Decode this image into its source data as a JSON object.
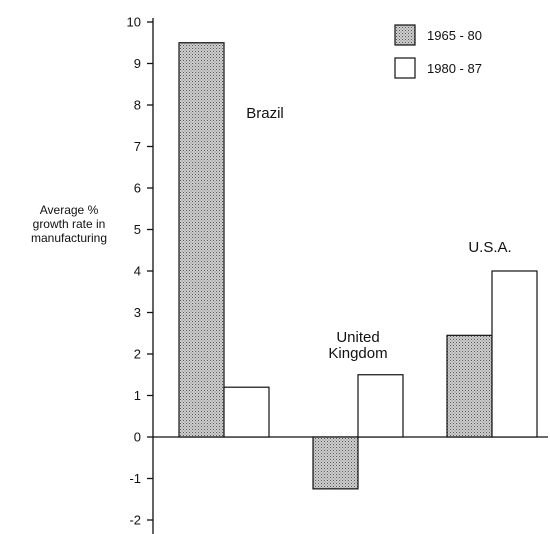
{
  "chart_data": {
    "type": "bar",
    "categories": [
      "Brazil",
      "United Kingdom",
      "U.S.A."
    ],
    "category_label_lines": [
      [
        "Brazil"
      ],
      [
        "United",
        "Kingdom"
      ],
      [
        "U.S.A."
      ]
    ],
    "series": [
      {
        "name": "1965 - 80",
        "values": [
          9.5,
          -1.25,
          2.45
        ],
        "pattern": "dotted"
      },
      {
        "name": "1980 - 87",
        "values": [
          1.2,
          1.5,
          4.0
        ],
        "pattern": "white"
      }
    ],
    "ylabel_lines": [
      "Average %",
      "growth rate in",
      "manufacturing"
    ],
    "ylim": [
      -2,
      10
    ],
    "yticks": [
      -2,
      -1,
      0,
      1,
      2,
      3,
      4,
      5,
      6,
      7,
      8,
      9,
      10
    ],
    "grid": false,
    "legend_position": "top-right",
    "colors": {
      "outline": "#111111",
      "dotted_fill": "#c8c8c8",
      "dot": "#555555",
      "white_fill": "#ffffff"
    }
  }
}
